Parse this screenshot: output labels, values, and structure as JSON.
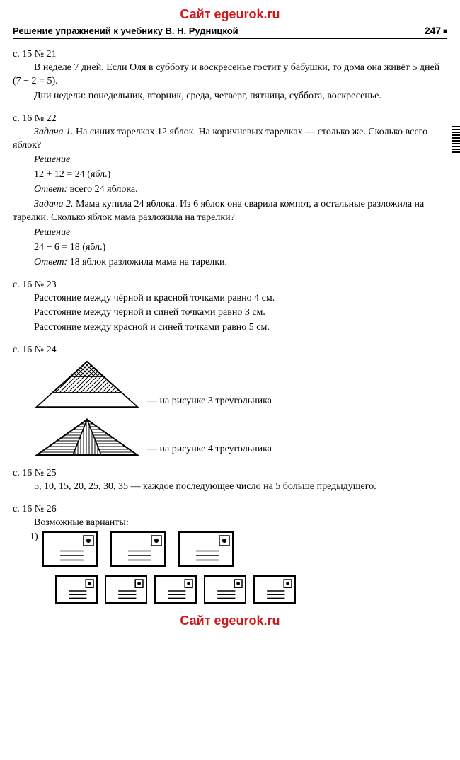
{
  "watermark": "Сайт egeurok.ru",
  "header": {
    "title": "Решение упражнений к учебнику В. Н. Рудницкой",
    "page": "247"
  },
  "ex21": {
    "head": "с. 15 № 21",
    "p1": "В неделе 7 дней. Если Оля в субботу и воскресенье гостит у бабушки, то дома она живёт 5 дней (7 − 2 = 5).",
    "p2": "Дни недели: понедельник, вторник, среда, четверг, пятница, суббота, воскресенье."
  },
  "ex22": {
    "head": "с. 16 № 22",
    "t1_title": "Задача 1.",
    "t1_body": " На синих тарелках 12 яблок. На коричневых тарелках — столько же. Сколько всего яблок?",
    "sol_label": "Решение",
    "t1_calc": "12 + 12 = 24 (ябл.)",
    "ans_label": "Ответ:",
    "t1_ans": " всего 24 яблока.",
    "t2_title": "Задача 2.",
    "t2_body": " Мама купила 24 яблока. Из 6 яблок она сварила компот, а остальные разложила на тарелки. Сколько яблок мама разложила на тарелки?",
    "t2_calc": "24 − 6 = 18 (ябл.)",
    "t2_ans": " 18 яблок разложила мама на тарелки."
  },
  "ex23": {
    "head": "с. 16 № 23",
    "p1": "Расстояние между чёрной и красной точками равно 4 см.",
    "p2": "Расстояние между чёрной и синей точками равно 3 см.",
    "p3": "Расстояние между красной и синей точками равно 5 см."
  },
  "ex24": {
    "head": "с. 16 № 24",
    "cap1": "— на рисунке 3 треугольника",
    "cap2": "— на рисунке 4 треугольника",
    "tri1": {
      "w": 150,
      "h": 70,
      "stroke": "#000000",
      "hatch_top": "crosshatch",
      "hatch_mid": "diagonal"
    },
    "tri2": {
      "w": 150,
      "h": 56,
      "stroke": "#000000"
    }
  },
  "ex25": {
    "head": "с. 16 № 25",
    "p1": "5, 10, 15, 20, 25, 30, 35 — каждое последующее число на 5 больше предыдущего."
  },
  "ex26": {
    "head": "с. 16 № 26",
    "p1": "Возможные варианты:",
    "lead": "1)",
    "env_big": {
      "w": 78,
      "h": 50,
      "count": 3
    },
    "env_small": {
      "w": 60,
      "h": 40,
      "count": 5
    }
  },
  "colors": {
    "text": "#000000",
    "accent": "#d01818",
    "bg": "#ffffff"
  }
}
